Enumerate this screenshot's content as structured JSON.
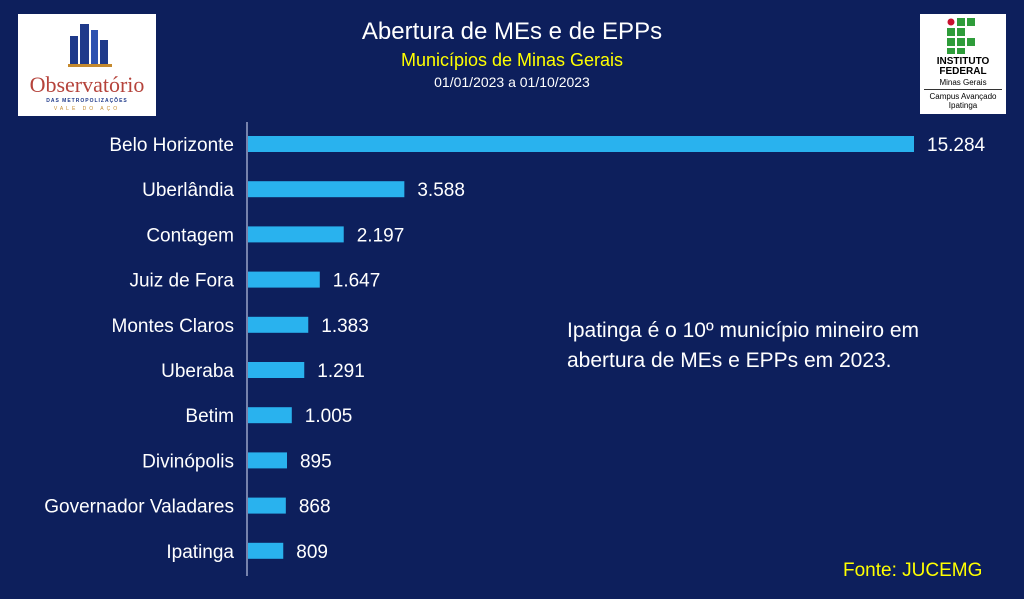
{
  "header": {
    "title": "Abertura de MEs e de EPPs",
    "subtitle": "Municípios de Minas Gerais",
    "date_range": "01/01/2023 a 01/10/2023"
  },
  "logos": {
    "left": {
      "name": "Observatório",
      "line2": "DAS METROPOLIZAÇÕES",
      "line3": "VALE DO AÇO"
    },
    "right": {
      "line1": "INSTITUTO",
      "line2": "FEDERAL",
      "line3": "Minas Gerais",
      "line4": "Campus Avançado",
      "line5": "Ipatinga"
    }
  },
  "annotation": "Ipatinga é o 10º município mineiro em abertura de MEs e EPPs em 2023.",
  "source": "Fonte: JUCEMG",
  "colors": {
    "background": "#0d1f5c",
    "bar": "#29b2ee",
    "subtitle": "#ffff00"
  },
  "chart_data": {
    "type": "bar",
    "orientation": "horizontal",
    "title": "Abertura de MEs e de EPPs",
    "subtitle": "Municípios de Minas Gerais",
    "categories": [
      "Belo Horizonte",
      "Uberlândia",
      "Contagem",
      "Juiz de Fora",
      "Montes Claros",
      "Uberaba",
      "Betim",
      "Divinópolis",
      "Governador Valadares",
      "Ipatinga"
    ],
    "values": [
      15284,
      3588,
      2197,
      1647,
      1383,
      1291,
      1005,
      895,
      868,
      809
    ],
    "value_labels": [
      "15.284",
      "3.588",
      "2.197",
      "1.647",
      "1.383",
      "1.291",
      "1.005",
      "895",
      "868",
      "809"
    ],
    "xlabel": "",
    "ylabel": "",
    "grid": false,
    "legend": "none"
  }
}
